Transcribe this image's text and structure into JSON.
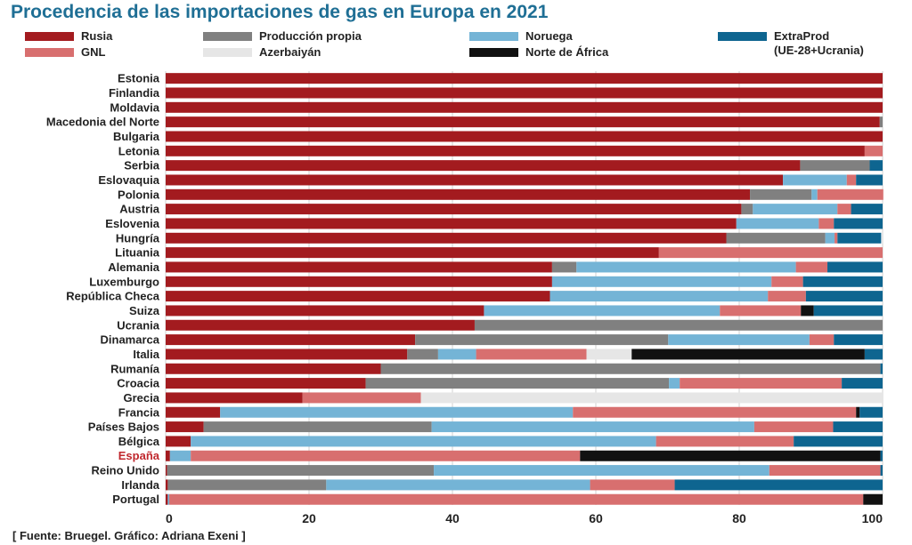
{
  "chart_data": {
    "type": "bar",
    "orientation": "horizontal",
    "stacked": true,
    "title": "Procedencia de las importaciones de gas en Europa en 2021",
    "source": "[ Fuente: Bruegel. Gráfico: Adriana Exeni ]",
    "xlim": [
      0,
      100
    ],
    "xticks": [
      0,
      20,
      40,
      60,
      80,
      100
    ],
    "highlight_category": "España",
    "highlight_color": "#c0272d",
    "categories": [
      "Estonia",
      "Finlandia",
      "Moldavia",
      "Macedonia del Norte",
      "Bulgaria",
      "Letonia",
      "Serbia",
      "Eslovaquia",
      "Polonia",
      "Austria",
      "Eslovenia",
      "Hungría",
      "Lituania",
      "Alemania",
      "Luxemburgo",
      "República Checa",
      "Suiza",
      "Ucrania",
      "Dinamarca",
      "Italia",
      "Rumanía",
      "Croacia",
      "Grecia",
      "Francia",
      "Países Bajos",
      "Bélgica",
      "España",
      "Reino Unido",
      "Irlanda",
      "Portugal"
    ],
    "series": [
      {
        "name": "Rusia",
        "color": "#a31b1f",
        "values": [
          100,
          100,
          100,
          99.6,
          100,
          97.5,
          88.5,
          86.1,
          81.5,
          80.3,
          79.6,
          78.2,
          68.8,
          53.9,
          53.9,
          53.6,
          44.4,
          43.1,
          34.8,
          33.7,
          30.0,
          27.9,
          19.1,
          7.6,
          5.3,
          3.5,
          0.6,
          0.2,
          0.3,
          0.3
        ]
      },
      {
        "name": "Producción propia",
        "color": "#808080",
        "values": [
          0,
          0,
          0,
          0.4,
          0,
          0,
          9.7,
          0,
          8.6,
          1.6,
          0,
          13.8,
          0,
          3.4,
          0,
          0,
          0,
          56.9,
          35.3,
          4.3,
          69.7,
          42.3,
          0,
          0,
          31.8,
          0,
          0,
          37.2,
          22.1,
          0
        ]
      },
      {
        "name": "Noruega",
        "color": "#74b4d6",
        "values": [
          0,
          0,
          0,
          0,
          0,
          0,
          0,
          8.9,
          0.8,
          11.8,
          11.5,
          1.3,
          0,
          30.6,
          30.6,
          30.4,
          32.9,
          0,
          19.7,
          5.3,
          0,
          1.5,
          0,
          49.2,
          45.0,
          64.9,
          2.9,
          46.8,
          36.8,
          0.2
        ]
      },
      {
        "name": "GNL",
        "color": "#d86f6f",
        "values": [
          0,
          0,
          0,
          0,
          0,
          2.5,
          0,
          1.3,
          9.2,
          1.9,
          2.1,
          0.4,
          31.2,
          4.4,
          4.4,
          5.3,
          11.3,
          0,
          3.4,
          15.4,
          0,
          22.6,
          16.5,
          39.5,
          11.0,
          19.2,
          54.3,
          15.5,
          11.8,
          96.8
        ]
      },
      {
        "name": "Azerbaiyán",
        "color": "#e6e6e6",
        "values": [
          0,
          0,
          0,
          0,
          0,
          0,
          0,
          0,
          0,
          0,
          0,
          0,
          0,
          0,
          0,
          0,
          0,
          0,
          0,
          6.3,
          0,
          0,
          64.4,
          0,
          0,
          0,
          0,
          0,
          0,
          0
        ]
      },
      {
        "name": "Norte de África",
        "color": "#111111",
        "values": [
          0,
          0,
          0,
          0,
          0,
          0,
          0,
          0,
          0,
          0,
          0,
          0,
          0,
          0,
          0,
          0,
          1.8,
          0,
          0,
          32.5,
          0,
          0,
          0,
          0.5,
          0,
          0,
          41.9,
          0,
          0,
          2.7
        ]
      },
      {
        "name": "ExtraProd (UE-28+Ucrania)",
        "color": "#0e6590",
        "values": [
          0,
          0,
          0,
          0,
          0,
          0,
          1.8,
          3.7,
          0,
          4.4,
          6.8,
          6.1,
          0,
          7.7,
          11.1,
          10.7,
          9.6,
          0,
          6.8,
          2.5,
          0.3,
          5.7,
          0,
          3.2,
          6.9,
          12.4,
          0.3,
          0.3,
          29.0,
          0
        ]
      }
    ]
  },
  "legend": {
    "items": [
      {
        "label": "Rusia",
        "color": "#a31b1f"
      },
      {
        "label": "Producción propia",
        "color": "#808080"
      },
      {
        "label": "Noruega",
        "color": "#74b4d6"
      },
      {
        "label": "ExtraProd",
        "label2": "(UE-28+Ucrania)",
        "color": "#0e6590"
      },
      {
        "label": "GNL",
        "color": "#d86f6f"
      },
      {
        "label": "Azerbaiyán",
        "color": "#e6e6e6"
      },
      {
        "label": "Norte de África",
        "color": "#111111"
      }
    ]
  }
}
